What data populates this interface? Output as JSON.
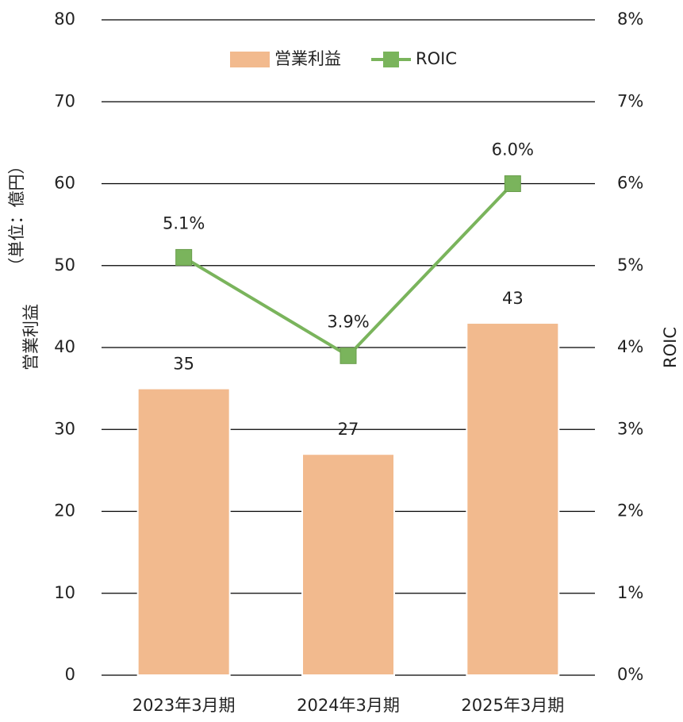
{
  "chart_data": {
    "type": "bar-line",
    "categories": [
      "2023年3月期",
      "2024年3月期",
      "2025年3月期"
    ],
    "series": [
      {
        "name": "営業利益",
        "type": "bar",
        "color": "#f2ba8e",
        "values": [
          35,
          27,
          43
        ]
      },
      {
        "name": "ROIC",
        "type": "line",
        "axis": "y2",
        "color": "#7ab45c",
        "values": [
          5.1,
          3.9,
          6.0
        ],
        "value_labels": [
          "5.1%",
          "3.9%",
          "6.0%"
        ]
      }
    ],
    "ylabel": [
      "営業利益",
      "（単位：億円）"
    ],
    "y2label": "ROIC",
    "ylim": [
      0,
      80
    ],
    "yticks": [
      0,
      10,
      20,
      30,
      40,
      50,
      60,
      70,
      80
    ],
    "y2lim": [
      0,
      8
    ],
    "y2ticks": [
      {
        "value": 0,
        "label": "0%"
      },
      {
        "value": 1,
        "label": "1%"
      },
      {
        "value": 2,
        "label": "2%"
      },
      {
        "value": 3,
        "label": "3%"
      },
      {
        "value": 4,
        "label": "4%"
      },
      {
        "value": 5,
        "label": "5%"
      },
      {
        "value": 6,
        "label": "6%"
      },
      {
        "value": 7,
        "label": "7%"
      },
      {
        "value": 8,
        "label": "8%"
      }
    ],
    "grid": true,
    "legend": "top"
  }
}
